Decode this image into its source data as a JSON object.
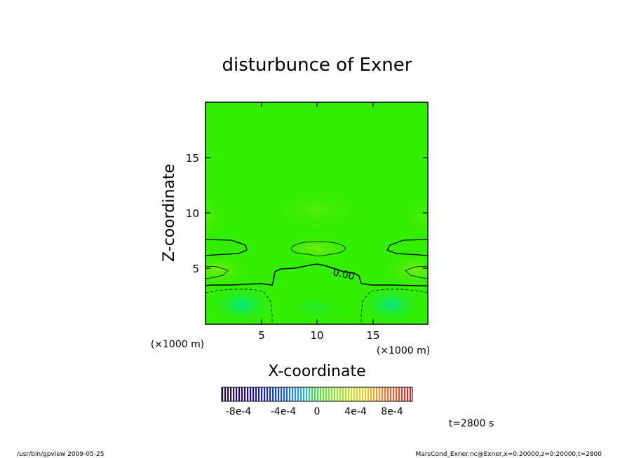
{
  "chart_data": {
    "type": "heatmap",
    "title": "disturbunce of Exner",
    "xlabel": "X-coordinate",
    "ylabel": "Z-coordinate",
    "x_unit_label": "(×1000 m)",
    "y_unit_label": "(×1000 m)",
    "xlim": [
      0,
      20
    ],
    "ylim": [
      0,
      20
    ],
    "x_ticks": [
      "5",
      "10",
      "15"
    ],
    "y_ticks": [
      "5",
      "10",
      "15"
    ],
    "contour_label": "0.00",
    "colorbar": {
      "range": [
        -0.001,
        0.001
      ],
      "tick_labels": [
        "-8e-4",
        "-4e-4",
        "0",
        "4e-4",
        "8e-4"
      ]
    },
    "time_label": "t=2800 s",
    "footer_left": "/usr/bin/gpview  2009-05-25",
    "footer_right": "MarsCond_Exner.nc@Exner,x=0:20000,z=0:20000,t=2800"
  },
  "colors": {
    "field_base": "#33ee00",
    "field_positive": "#66ee11",
    "field_negative": "#00e677"
  }
}
